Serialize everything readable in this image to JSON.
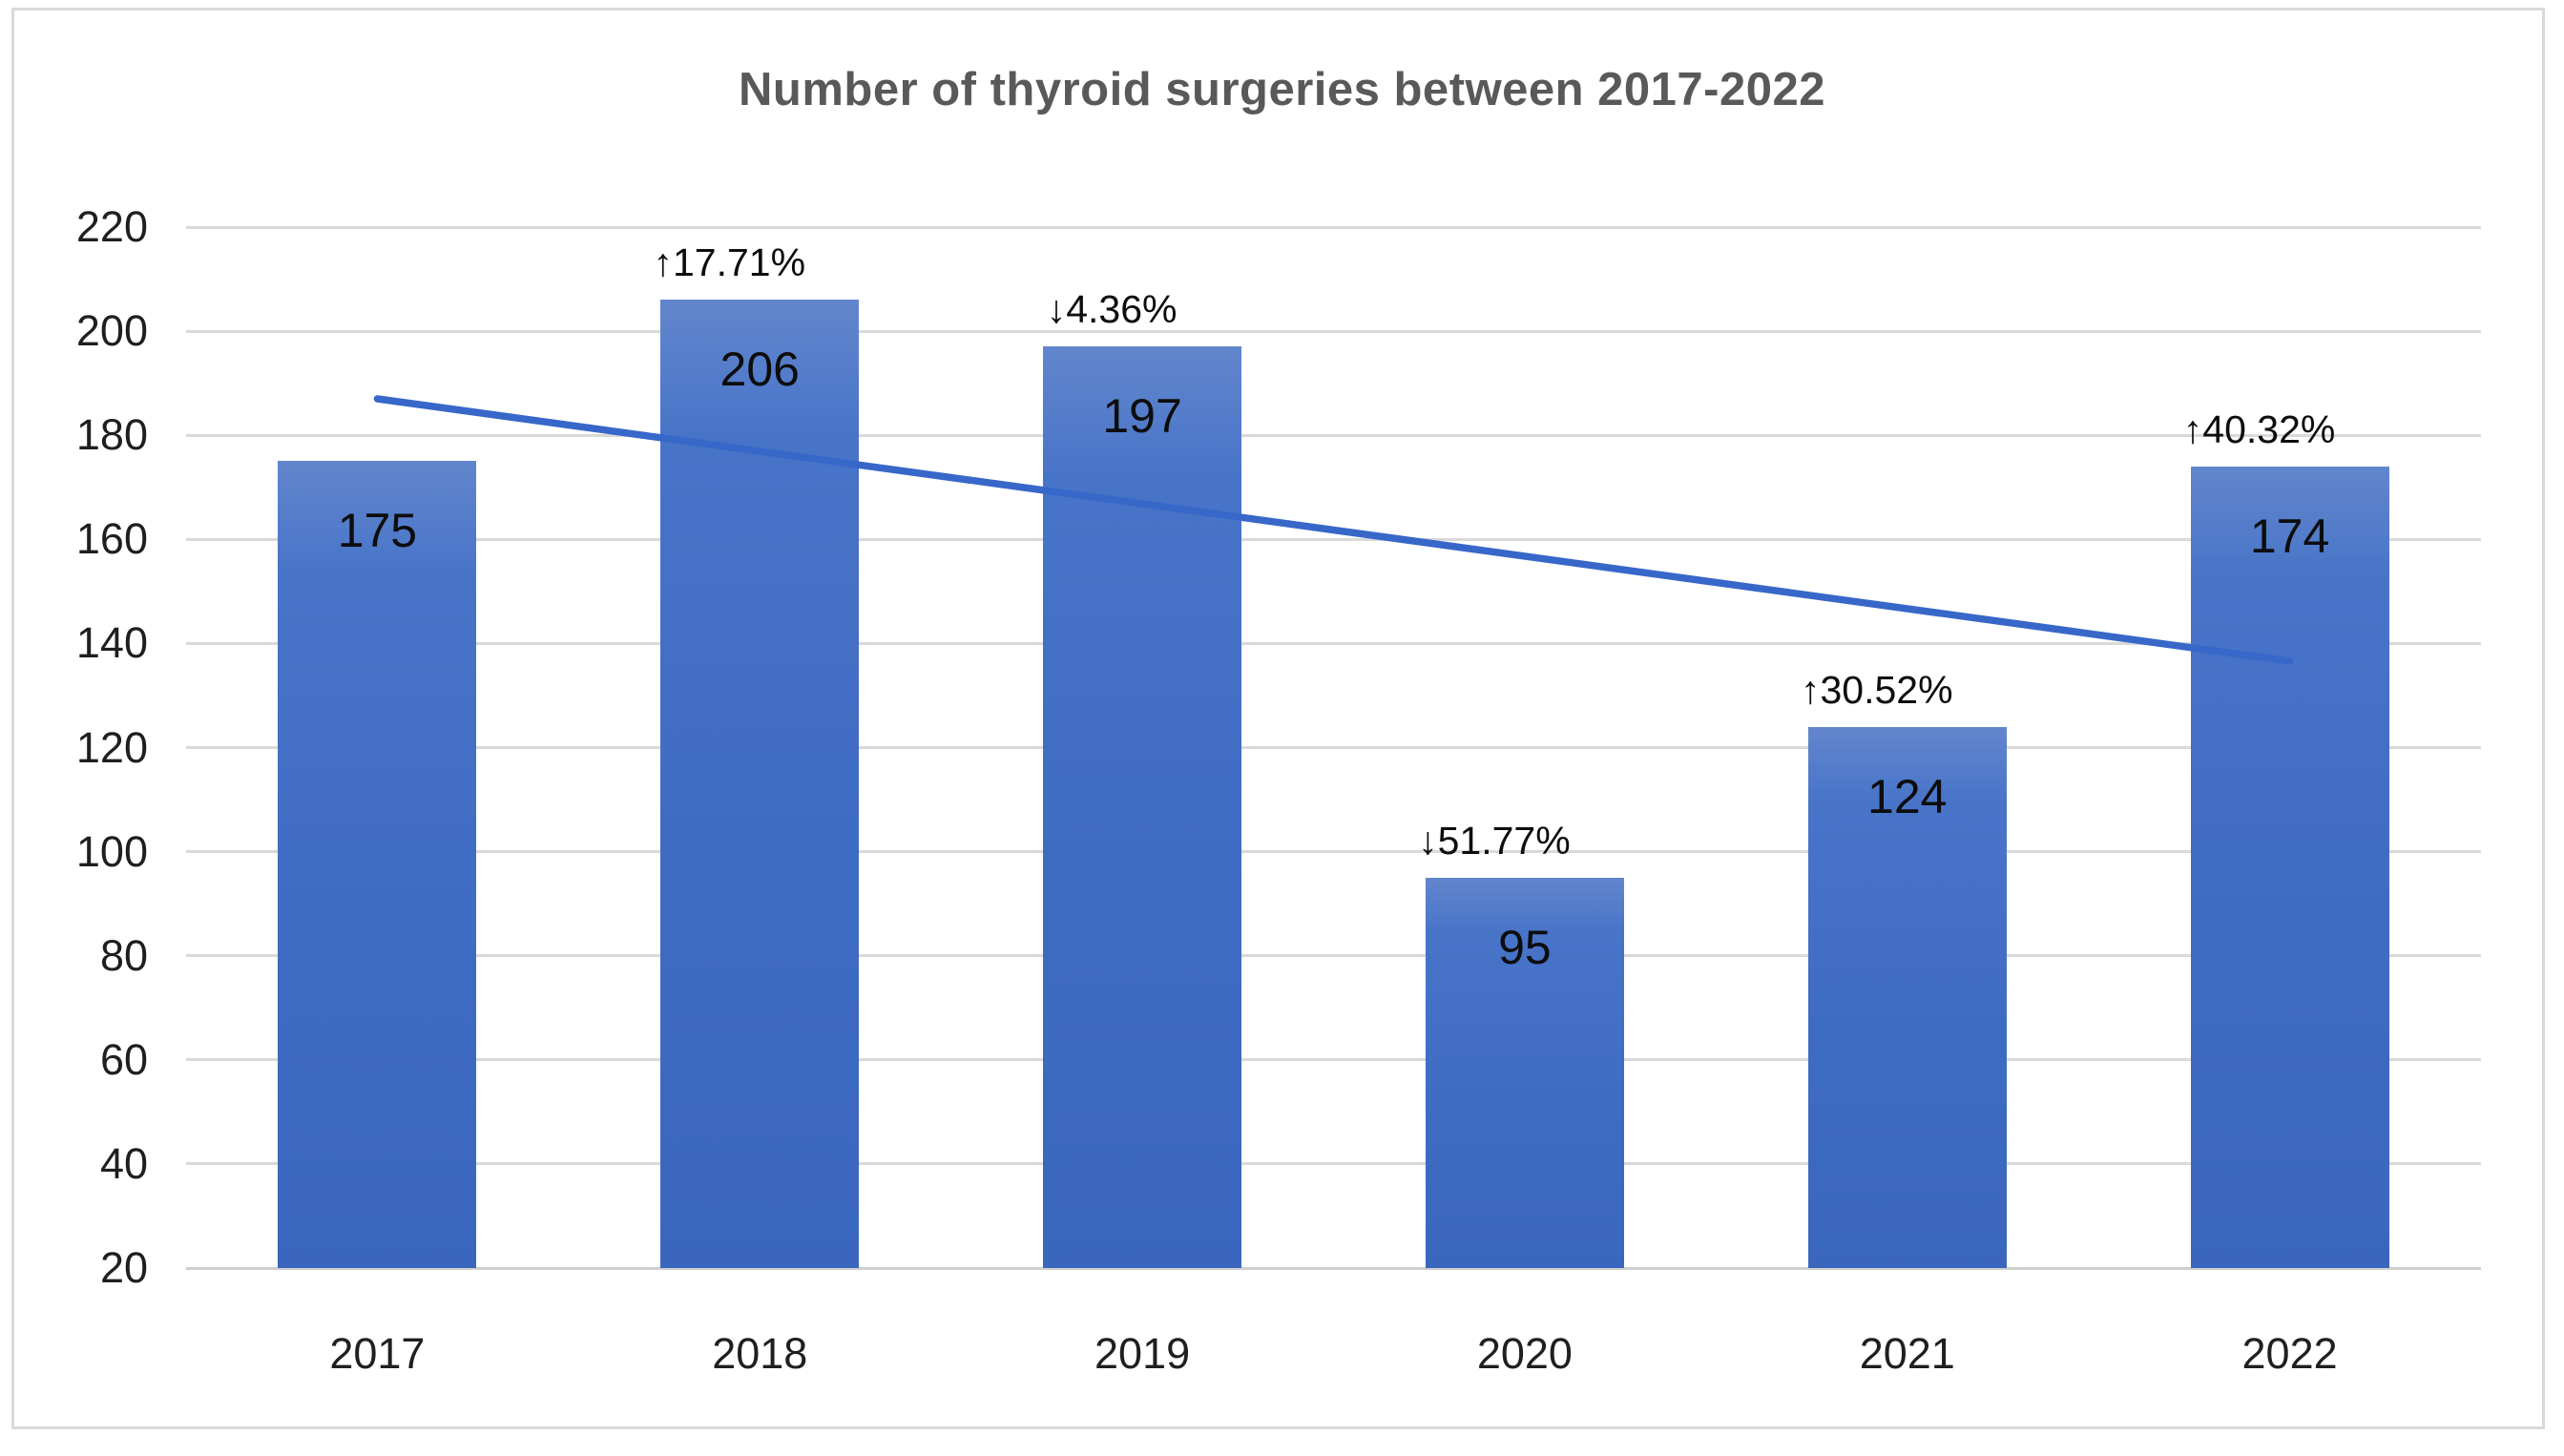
{
  "title": "Number of thyroid surgeries between 2017-2022",
  "colors": {
    "bar_top": "#6286cd",
    "bar_mid": "#3f6cc3",
    "bar_bottom": "#3a67bd",
    "trendline": "#3767c9",
    "gridline": "#d9d9d9",
    "title_text": "#595959",
    "label_text": "#0d0d0d"
  },
  "chart_data": {
    "type": "bar",
    "title": "Number of thyroid surgeries between 2017-2022",
    "xlabel": "",
    "ylabel": "",
    "categories": [
      "2017",
      "2018",
      "2019",
      "2020",
      "2021",
      "2022"
    ],
    "values": [
      175,
      206,
      197,
      95,
      124,
      174
    ],
    "change_labels": [
      "",
      "↑17.71%",
      "↓4.36%",
      "↓51.77%",
      "↑30.52%",
      "↑40.32%"
    ],
    "y_ticks": [
      220,
      200,
      180,
      160,
      140,
      120,
      100,
      80,
      60,
      40,
      20
    ],
    "ylim": [
      20,
      220
    ],
    "grid": true,
    "legend": "none",
    "trendline": {
      "type": "linear",
      "start_value": 187,
      "end_value": 136.6,
      "color": "#3767c9"
    }
  }
}
